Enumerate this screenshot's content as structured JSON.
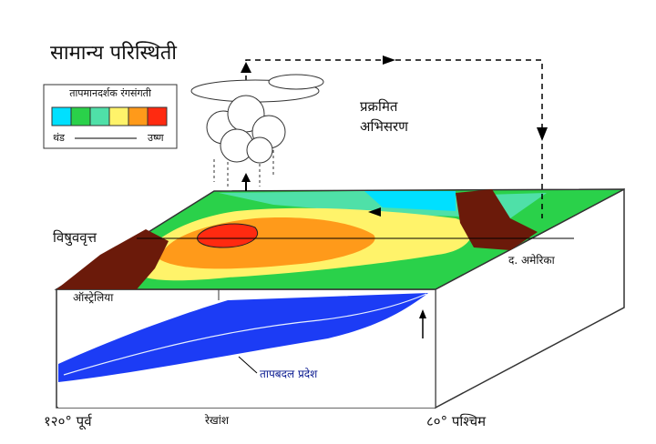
{
  "title": "सामान्य परिस्थिती",
  "legend": {
    "title": "तापमानदर्शक रंगसंगती",
    "cold": "थंड",
    "hot": "उष्ण"
  },
  "labels": {
    "circulation": [
      "प्रक्रमित",
      "अभिसरण"
    ],
    "equator": "विषुववृत्त",
    "south_america": "द. अमेरिका",
    "australia": "ऑस्ट्रेलिया",
    "thermocline": "तापबदल प्रदेश"
  },
  "axis": {
    "west": "१२०° पूर्व",
    "middle": "रेखांश",
    "east": "८०° पश्चिम"
  }
}
